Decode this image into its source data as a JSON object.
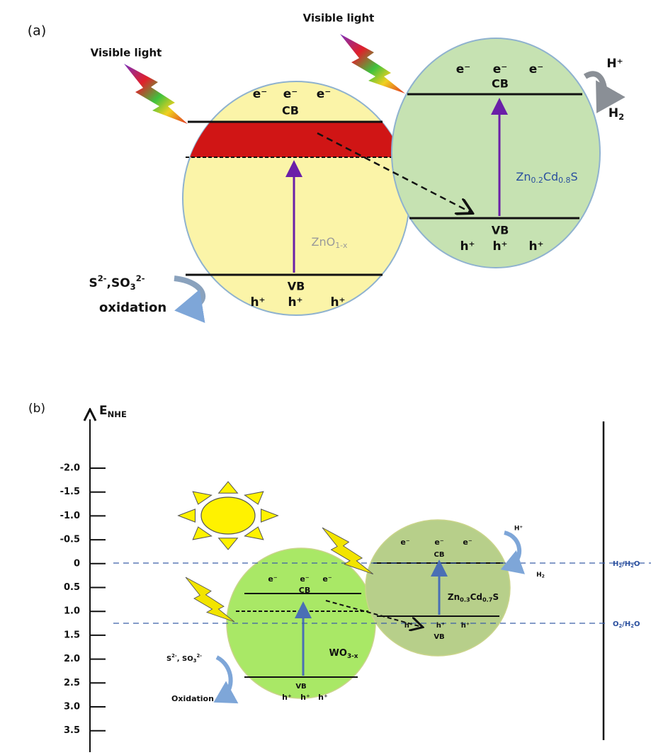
{
  "panel_a": {
    "label": "(a)",
    "light_left": "Visible light",
    "light_right": "Visible light",
    "zno": {
      "name": [
        "ZnO",
        "1-x"
      ],
      "cb": "CB",
      "vb": "VB",
      "electrons": [
        "e⁻",
        "e⁻",
        "e⁻"
      ],
      "holes": [
        "h⁺",
        "h⁺",
        "h⁺"
      ]
    },
    "zncds": {
      "name": [
        "Zn",
        "0.2",
        "Cd",
        "0.8",
        "S"
      ],
      "cb": "CB",
      "vb": "VB",
      "electrons": [
        "e⁻",
        "e⁻",
        "e⁻"
      ],
      "holes": [
        "h⁺",
        "h⁺",
        "h⁺"
      ]
    },
    "proton": "H⁺",
    "hydrogen": [
      "H",
      "2"
    ],
    "sacrificial": [
      "S",
      "2-",
      ",SO",
      "3",
      "2-"
    ],
    "oxidation": "oxidation"
  },
  "panel_b": {
    "label": "(b)",
    "axis_label": [
      "E",
      "NHE"
    ],
    "ticks": [
      "-2.0",
      "-1.5",
      "-1.0",
      "-0.5",
      "0",
      "0.5",
      "1.0",
      "1.5",
      "2.0",
      "2.5",
      "3.0",
      "3.5"
    ],
    "levels": [
      [
        "H",
        "2",
        "/H",
        "2",
        "O"
      ],
      [
        "O",
        "2",
        "/H",
        "2",
        "O"
      ]
    ],
    "wo3": {
      "name": [
        "WO",
        "3-x"
      ],
      "cb": "CB",
      "vb": "VB",
      "electrons": [
        "e⁻",
        "e⁻",
        "e⁻"
      ],
      "holes": [
        "h⁺",
        "h⁺",
        "h⁺"
      ]
    },
    "zncds": {
      "name": [
        "Zn",
        "0.3",
        "Cd",
        "0.7",
        "S"
      ],
      "cb": "CB",
      "vb": "VB",
      "electrons": [
        "e⁻",
        "e⁻",
        "e⁻"
      ],
      "holes": [
        "h⁺",
        "h⁺",
        "h⁺"
      ]
    },
    "proton": "H⁺",
    "hydrogen": [
      "H",
      "2"
    ],
    "sacrificial": [
      "S",
      "2-",
      ", SO",
      "3",
      "2-"
    ],
    "oxidation": "Oxidation"
  }
}
